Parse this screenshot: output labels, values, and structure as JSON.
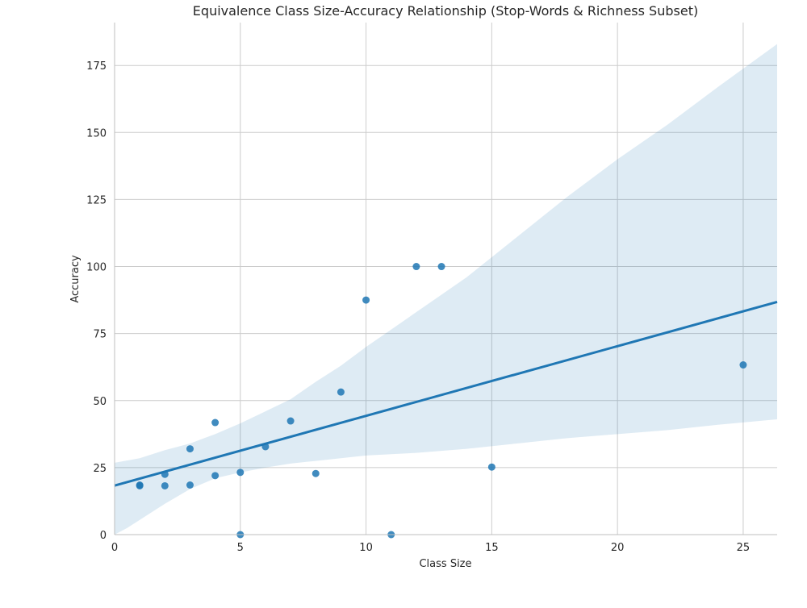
{
  "chart_data": {
    "type": "scatter",
    "title": "Equivalence Class Size-Accuracy Relationship (Stop-Words & Richness Subset)",
    "xlabel": "Class Size",
    "ylabel": "Accuracy",
    "xlim": [
      0,
      26.35
    ],
    "ylim": [
      0,
      191
    ],
    "xticks": [
      0,
      5,
      10,
      15,
      20,
      25
    ],
    "yticks": [
      0,
      25,
      50,
      75,
      100,
      125,
      150,
      175
    ],
    "grid": true,
    "legend": "none",
    "series": [
      {
        "name": "points",
        "x": [
          1,
          1,
          2,
          2,
          3,
          3,
          4,
          4,
          5,
          5,
          6,
          7,
          8,
          9,
          10,
          11,
          12,
          13,
          15,
          25
        ],
        "y": [
          18.5,
          18.2,
          22.5,
          18.2,
          32.0,
          18.5,
          41.8,
          22.0,
          23.2,
          0.0,
          32.8,
          42.4,
          22.8,
          53.2,
          87.5,
          0.0,
          100.0,
          100.0,
          25.2,
          63.3
        ]
      }
    ],
    "regression": {
      "intercept": 18.3,
      "slope": 2.6,
      "ci_upper": [
        [
          0,
          26.8
        ],
        [
          1,
          28.5
        ],
        [
          2,
          31.5
        ],
        [
          3,
          34.0
        ],
        [
          4,
          37.5
        ],
        [
          5,
          41.5
        ],
        [
          6,
          46.0
        ],
        [
          7,
          50.5
        ],
        [
          8,
          57.0
        ],
        [
          9,
          63.0
        ],
        [
          10,
          70.0
        ],
        [
          12,
          83.0
        ],
        [
          14,
          96.0
        ],
        [
          16,
          111.0
        ],
        [
          18,
          126.0
        ],
        [
          20,
          140.0
        ],
        [
          22,
          153.0
        ],
        [
          24,
          167.0
        ],
        [
          26.35,
          183.0
        ]
      ],
      "ci_lower": [
        [
          0,
          0.0
        ],
        [
          0.5,
          2.5
        ],
        [
          1,
          5.5
        ],
        [
          2,
          11.5
        ],
        [
          3,
          17.0
        ],
        [
          4,
          21.0
        ],
        [
          5,
          23.2
        ],
        [
          6,
          25.0
        ],
        [
          7,
          26.5
        ],
        [
          8,
          27.5
        ],
        [
          9,
          28.5
        ],
        [
          10,
          29.5
        ],
        [
          12,
          30.5
        ],
        [
          14,
          32.0
        ],
        [
          16,
          34.0
        ],
        [
          18,
          36.0
        ],
        [
          20,
          37.5
        ],
        [
          22,
          39.0
        ],
        [
          24,
          41.0
        ],
        [
          26.35,
          43.0
        ]
      ]
    },
    "colors": {
      "point": "#1f77b4",
      "line": "#1f77b4",
      "band": "#1f77b4",
      "grid": "#cccccc",
      "axis": "#bfbfbf"
    }
  }
}
